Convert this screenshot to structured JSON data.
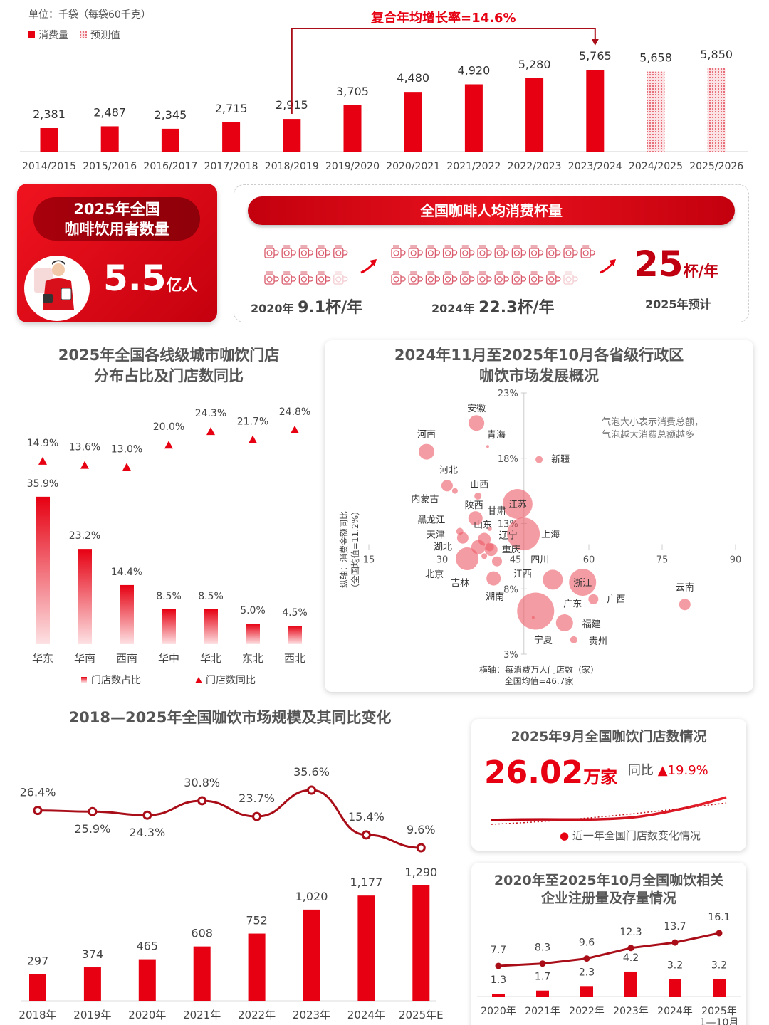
{
  "colors": {
    "primary": "#e60012",
    "dark_red": "#a8000c",
    "bubble": "#ee6f78",
    "text": "#444444"
  },
  "users_card": {
    "title_line1": "2025年全国",
    "title_line2": "咖啡饮用者数量",
    "value": "5.5",
    "unit": "亿人",
    "icon": "coffee-drinker-illustration"
  },
  "per_capita_card": {
    "banner": "全国咖啡人均消费杯量",
    "icon": "coffee-mug-icon",
    "items": [
      {
        "year": "2020年",
        "value": 9.1,
        "value_label": "9.1杯/年"
      },
      {
        "year": "2024年",
        "value": 22.3,
        "value_label": "22.3杯/年"
      }
    ],
    "forecast_value": "25",
    "forecast_unit": "杯/年",
    "forecast_label": "2025年预计"
  },
  "store_card": {
    "title": "2025年9月全国咖饮门店数情况",
    "value": "26.02",
    "unit": "万家",
    "yoy_label": "同比",
    "yoy_value": "19.9%",
    "legend": "近一年全国门店数变化情况"
  },
  "chart_data": [
    {
      "type": "bar",
      "unit": "单位：千袋（每袋60千克）",
      "legend": [
        "消费量",
        "预测值"
      ],
      "categories": [
        "2014/2015",
        "2015/2016",
        "2016/2017",
        "2017/2018",
        "2018/2019",
        "2019/2020",
        "2020/2021",
        "2021/2022",
        "2022/2023",
        "2023/2024",
        "2024/2025",
        "2025/2026"
      ],
      "values": [
        2381,
        2487,
        2345,
        2715,
        2915,
        3705,
        4480,
        4920,
        5280,
        5765,
        5658,
        5850
      ],
      "forecast": [
        false,
        false,
        false,
        false,
        false,
        false,
        false,
        false,
        false,
        false,
        true,
        true
      ],
      "annotation": {
        "text": "复合年均增长率=14.6%",
        "from": "2018/2019",
        "to": "2023/2024"
      }
    },
    {
      "type": "bar",
      "title_line1": "2025年全国各线级城市咖饮门店",
      "title_line2": "分布占比及门店数同比",
      "categories": [
        "华东",
        "华南",
        "西南",
        "华中",
        "华北",
        "东北",
        "西北"
      ],
      "series": [
        {
          "name": "门店数占比",
          "type": "bar",
          "values": [
            35.9,
            23.2,
            14.4,
            8.5,
            8.5,
            5.0,
            4.5
          ]
        },
        {
          "name": "门店数同比",
          "type": "marker",
          "values": [
            14.9,
            13.6,
            13.0,
            20.0,
            24.3,
            21.7,
            24.8
          ]
        }
      ],
      "unit": "%"
    },
    {
      "type": "scatter",
      "subtype": "bubble",
      "title_line1": "2024年11月至2025年10月各省级行政区",
      "title_line2": "咖饮市场发展概况",
      "xlabel": "横轴：每消费万人门店数（家）",
      "xnote": "全国均值=46.7家",
      "ylabel": "纵轴：消费金额同比",
      "ynote": "（全国均值=11.2%）",
      "x_mean": 46.7,
      "y_mean": 11.2,
      "xlim": [
        15,
        90
      ],
      "ylim": [
        3,
        23
      ],
      "xticks": [
        "15",
        "30",
        "45",
        "60",
        "75",
        "90"
      ],
      "yticks": [
        "23%",
        "18%",
        "13%",
        "8%",
        "3%"
      ],
      "note_line1": "气泡大小表示消费总额，",
      "note_line2": "气泡越大消费总额越多",
      "points": [
        {
          "name": "安徽",
          "x": 37.0,
          "y": 20.7,
          "size": 11
        },
        {
          "name": "河南",
          "x": 26.8,
          "y": 18.5,
          "size": 11
        },
        {
          "name": "青海",
          "x": 39.3,
          "y": 18.9,
          "size": 2
        },
        {
          "name": "新疆",
          "x": 49.8,
          "y": 17.9,
          "size": 5
        },
        {
          "name": "河北",
          "x": 31.0,
          "y": 15.9,
          "size": 8
        },
        {
          "name": "内蒙古",
          "x": 32.6,
          "y": 15.5,
          "size": 4
        },
        {
          "name": "山西",
          "x": 37.3,
          "y": 15.1,
          "size": 5
        },
        {
          "name": "江苏",
          "x": 45.4,
          "y": 14.5,
          "size": 21
        },
        {
          "name": "陕西",
          "x": 36.8,
          "y": 13.4,
          "size": 10
        },
        {
          "name": "甘肃",
          "x": 39.7,
          "y": 12.6,
          "size": 3
        },
        {
          "name": "上海",
          "x": 46.6,
          "y": 12.2,
          "size": 23
        },
        {
          "name": "黑龙江",
          "x": 33.6,
          "y": 12.4,
          "size": 5
        },
        {
          "name": "天津",
          "x": 34.2,
          "y": 11.9,
          "size": 8
        },
        {
          "name": "山东",
          "x": 38.6,
          "y": 11.8,
          "size": 9
        },
        {
          "name": "湖北",
          "x": 37.4,
          "y": 11.2,
          "size": 10
        },
        {
          "name": "辽宁",
          "x": 39.7,
          "y": 11.2,
          "size": 6
        },
        {
          "name": "重庆",
          "x": 40.0,
          "y": 11.0,
          "size": 9
        },
        {
          "name": "北京",
          "x": 35.1,
          "y": 10.3,
          "size": 16
        },
        {
          "name": "吉林",
          "x": 38.6,
          "y": 10.5,
          "size": 4
        },
        {
          "name": "江西",
          "x": 41.2,
          "y": 10.1,
          "size": 7
        },
        {
          "name": "湖南",
          "x": 40.5,
          "y": 8.8,
          "size": 10
        },
        {
          "name": "四川",
          "x": 52.6,
          "y": 8.7,
          "size": 14
        },
        {
          "name": "浙江",
          "x": 58.7,
          "y": 8.5,
          "size": 19
        },
        {
          "name": "广西",
          "x": 60.9,
          "y": 7.2,
          "size": 7
        },
        {
          "name": "云南",
          "x": 79.6,
          "y": 6.8,
          "size": 8
        },
        {
          "name": "广东",
          "x": 49.1,
          "y": 6.3,
          "size": 26
        },
        {
          "name": "福建",
          "x": 55.0,
          "y": 5.4,
          "size": 12
        },
        {
          "name": "宁夏",
          "x": 48.6,
          "y": 5.8,
          "size": 2
        },
        {
          "name": "贵州",
          "x": 56.9,
          "y": 4.1,
          "size": 5
        }
      ]
    },
    {
      "type": "bar",
      "title": "2018—2025年全国咖饮市场规模及其同比变化",
      "categories": [
        "2018年",
        "2019年",
        "2020年",
        "2021年",
        "2022年",
        "2023年",
        "2024年",
        "2025年E"
      ],
      "series": [
        {
          "type": "bar",
          "values": [
            297,
            374,
            465,
            608,
            752,
            1020,
            1177,
            1290
          ]
        },
        {
          "type": "line",
          "values": [
            26.4,
            25.9,
            24.3,
            30.8,
            23.7,
            35.6,
            15.4,
            9.6
          ],
          "unit": "%"
        }
      ]
    },
    {
      "type": "bar",
      "title_line1": "2020年至2025年10月全国咖饮相关",
      "title_line2": "企业注册量及存量情况",
      "categories": [
        "2020年",
        "2021年",
        "2022年",
        "2023年",
        "2024年",
        "2025年"
      ],
      "category_sublabels": [
        "",
        "",
        "",
        "",
        "",
        "1—10月"
      ],
      "series": [
        {
          "type": "line",
          "values": [
            7.7,
            8.3,
            9.6,
            12.3,
            13.7,
            16.1
          ]
        },
        {
          "type": "bar",
          "values": [
            1.3,
            1.7,
            2.3,
            4.2,
            3.2,
            3.2
          ]
        }
      ]
    }
  ]
}
